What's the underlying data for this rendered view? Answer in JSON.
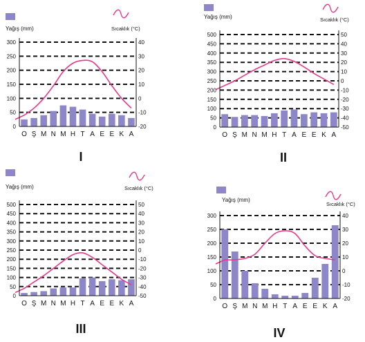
{
  "colors": {
    "bar": "#8d86c9",
    "line": "#e8388a",
    "axis": "#111111"
  },
  "chart_data": [
    {
      "type": "bar",
      "roman": "I",
      "precip_label": "Yağış (mm)",
      "temp_label": "Sıcaklık (°C)",
      "categories": [
        "O",
        "Ş",
        "M",
        "N",
        "M",
        "H",
        "T",
        "A",
        "E",
        "E",
        "K",
        "A"
      ],
      "ylim_left": [
        0,
        300
      ],
      "yticks_left": [
        0,
        50,
        100,
        150,
        200,
        250,
        300
      ],
      "ylim_right": [
        -20,
        40
      ],
      "yticks_right": [
        -20,
        -10,
        0,
        10,
        20,
        30,
        40
      ],
      "series": [
        {
          "values": [
            25,
            30,
            40,
            55,
            75,
            70,
            60,
            45,
            35,
            45,
            40,
            30
          ]
        },
        {
          "values": [
            -12,
            -7,
            0,
            9,
            19,
            25,
            27,
            26,
            19,
            9,
            0,
            -7
          ]
        }
      ]
    },
    {
      "type": "bar",
      "roman": "II",
      "precip_label": "Yağış (mm)",
      "temp_label": "Sıcaklık (°C)",
      "categories": [
        "O",
        "Ş",
        "M",
        "N",
        "M",
        "H",
        "T",
        "A",
        "E",
        "E",
        "K",
        "A"
      ],
      "ylim_left": [
        0,
        500
      ],
      "yticks_left": [
        0,
        50,
        100,
        150,
        200,
        250,
        300,
        350,
        400,
        450,
        500
      ],
      "ylim_right": [
        -50,
        50
      ],
      "yticks_right": [
        -50,
        -40,
        -30,
        -20,
        -10,
        0,
        10,
        20,
        30,
        40,
        50
      ],
      "series": [
        {
          "values": [
            70,
            55,
            65,
            65,
            60,
            75,
            90,
            95,
            70,
            80,
            75,
            80
          ]
        },
        {
          "values": [
            -5,
            0,
            6,
            12,
            17,
            22,
            24,
            21,
            15,
            8,
            2,
            -4
          ]
        }
      ]
    },
    {
      "type": "bar",
      "roman": "III",
      "precip_label": "Yağış (mm)",
      "temp_label": "Sıcaklık (°C)",
      "categories": [
        "O",
        "Ş",
        "M",
        "N",
        "M",
        "H",
        "T",
        "A",
        "E",
        "E",
        "K",
        "A"
      ],
      "ylim_left": [
        0,
        500
      ],
      "yticks_left": [
        0,
        50,
        100,
        150,
        200,
        250,
        300,
        350,
        400,
        450,
        500
      ],
      "ylim_right": [
        -50,
        50
      ],
      "yticks_right": [
        -50,
        -40,
        -30,
        -20,
        -10,
        0,
        10,
        20,
        30,
        40,
        50
      ],
      "series": [
        {
          "values": [
            15,
            20,
            25,
            40,
            45,
            45,
            95,
            100,
            80,
            90,
            85,
            90
          ]
        },
        {
          "values": [
            -42,
            -35,
            -28,
            -20,
            -12,
            -5,
            -3,
            -8,
            -16,
            -24,
            -32,
            -38
          ]
        }
      ]
    },
    {
      "type": "bar",
      "roman": "IV",
      "precip_label": "Yağış (mm)",
      "temp_label": "Sıcaklık (°C)",
      "categories": [
        "O",
        "Ş",
        "M",
        "N",
        "M",
        "H",
        "T",
        "A",
        "E",
        "E",
        "K",
        "A"
      ],
      "ylim_left": [
        0,
        300
      ],
      "yticks_left": [
        0,
        50,
        100,
        150,
        200,
        250,
        300
      ],
      "ylim_right": [
        -20,
        40
      ],
      "yticks_right": [
        -20,
        -10,
        0,
        10,
        20,
        30,
        40
      ],
      "series": [
        {
          "values": [
            250,
            170,
            100,
            55,
            35,
            15,
            10,
            10,
            20,
            75,
            125,
            265
          ]
        },
        {
          "values": [
            8,
            8,
            9,
            12,
            20,
            27,
            29,
            27,
            18,
            11,
            9,
            8
          ]
        }
      ]
    }
  ]
}
